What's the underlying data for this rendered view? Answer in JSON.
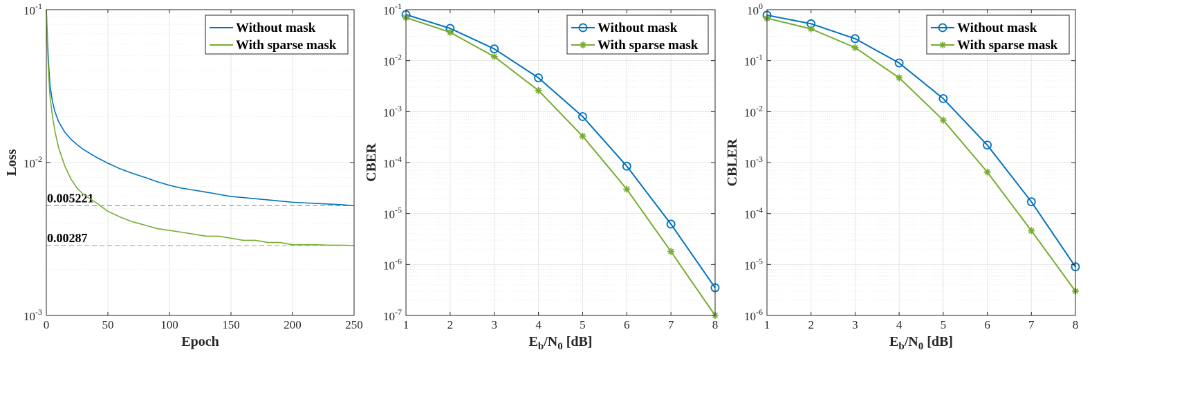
{
  "colors": {
    "blue": "#0072BD",
    "green": "#77AC30",
    "axis": "#262626",
    "grid": "#e6e6e6"
  },
  "chart_data": [
    {
      "type": "line",
      "xlabel": "Epoch",
      "ylabel": "Loss",
      "yscale": "log",
      "xlim": [
        0,
        250
      ],
      "ylim": [
        0.001,
        0.1
      ],
      "xticks": [
        0,
        50,
        100,
        150,
        200,
        250
      ],
      "yticks": [
        0.001,
        0.01,
        0.1
      ],
      "ytick_labels": [
        {
          "base": "10",
          "exp": "-3"
        },
        {
          "base": "10",
          "exp": "-2"
        },
        {
          "base": "10",
          "exp": "-1"
        }
      ],
      "grid": true,
      "legend": "top-right",
      "markers": false,
      "series": [
        {
          "name": "Without mask",
          "color": "#0072BD",
          "x": [
            0,
            1,
            2,
            3,
            5,
            7,
            10,
            15,
            20,
            25,
            30,
            40,
            50,
            60,
            70,
            80,
            90,
            100,
            110,
            120,
            130,
            140,
            150,
            160,
            170,
            180,
            190,
            200,
            210,
            220,
            230,
            240,
            250
          ],
          "y": [
            0.1,
            0.062,
            0.042,
            0.032,
            0.025,
            0.0215,
            0.0185,
            0.0158,
            0.0142,
            0.0131,
            0.0122,
            0.0109,
            0.0099,
            0.0091,
            0.0085,
            0.008,
            0.0075,
            0.0071,
            0.0068,
            0.0066,
            0.0064,
            0.0062,
            0.006,
            0.0059,
            0.0058,
            0.0057,
            0.0056,
            0.0055,
            0.00545,
            0.0054,
            0.00535,
            0.0053,
            0.00522
          ]
        },
        {
          "name": "With sparse mask",
          "color": "#77AC30",
          "x": [
            0,
            1,
            2,
            3,
            5,
            7,
            10,
            15,
            20,
            25,
            30,
            40,
            50,
            60,
            70,
            80,
            90,
            100,
            110,
            120,
            130,
            140,
            150,
            160,
            170,
            180,
            190,
            200,
            210,
            220,
            230,
            240,
            250
          ],
          "y": [
            0.1,
            0.055,
            0.036,
            0.027,
            0.02,
            0.016,
            0.0125,
            0.0095,
            0.0078,
            0.0068,
            0.0062,
            0.0055,
            0.0048,
            0.0044,
            0.0041,
            0.0039,
            0.0037,
            0.0036,
            0.0035,
            0.0034,
            0.0033,
            0.0033,
            0.0032,
            0.0031,
            0.0031,
            0.003,
            0.003,
            0.0029,
            0.0029,
            0.0029,
            0.00288,
            0.00288,
            0.00287
          ]
        }
      ],
      "reference_lines": [
        {
          "y": 0.005221,
          "label": "0.005221",
          "color": "#0072BD"
        },
        {
          "y": 0.00287,
          "label": "0.00287",
          "color": "#77AC30"
        }
      ]
    },
    {
      "type": "line",
      "xlabel": {
        "base": "E",
        "sub1": "b",
        "mid": "/N",
        "sub2": "0",
        "end": " [dB]"
      },
      "ylabel": "CBER",
      "yscale": "log",
      "xlim": [
        1,
        8
      ],
      "ylim": [
        1e-07,
        0.1
      ],
      "xticks": [
        1,
        2,
        3,
        4,
        5,
        6,
        7,
        8
      ],
      "yticks": [
        1e-07,
        1e-06,
        1e-05,
        0.0001,
        0.001,
        0.01,
        0.1
      ],
      "ytick_labels": [
        {
          "base": "10",
          "exp": "-7"
        },
        {
          "base": "10",
          "exp": "-6"
        },
        {
          "base": "10",
          "exp": "-5"
        },
        {
          "base": "10",
          "exp": "-4"
        },
        {
          "base": "10",
          "exp": "-3"
        },
        {
          "base": "10",
          "exp": "-2"
        },
        {
          "base": "10",
          "exp": "-1"
        }
      ],
      "grid": true,
      "legend": "top-right",
      "markers": true,
      "series": [
        {
          "name": "Without mask",
          "color": "#0072BD",
          "marker": "circle",
          "x": [
            1,
            2,
            3,
            4,
            5,
            6,
            7,
            8
          ],
          "y": [
            0.08,
            0.043,
            0.017,
            0.0046,
            0.0008,
            8.5e-05,
            6.2e-06,
            3.5e-07
          ]
        },
        {
          "name": "With sparse mask",
          "color": "#77AC30",
          "marker": "asterisk",
          "x": [
            1,
            2,
            3,
            4,
            5,
            6,
            7,
            8
          ],
          "y": [
            0.07,
            0.036,
            0.012,
            0.0026,
            0.00033,
            3e-05,
            1.8e-06,
            1e-07
          ]
        }
      ]
    },
    {
      "type": "line",
      "xlabel": {
        "base": "E",
        "sub1": "b",
        "mid": "/N",
        "sub2": "0",
        "end": " [dB]"
      },
      "ylabel": "CBLER",
      "yscale": "log",
      "xlim": [
        1,
        8
      ],
      "ylim": [
        1e-06,
        1
      ],
      "xticks": [
        1,
        2,
        3,
        4,
        5,
        6,
        7,
        8
      ],
      "yticks": [
        1e-06,
        1e-05,
        0.0001,
        0.001,
        0.01,
        0.1,
        1
      ],
      "ytick_labels": [
        {
          "base": "10",
          "exp": "-6"
        },
        {
          "base": "10",
          "exp": "-5"
        },
        {
          "base": "10",
          "exp": "-4"
        },
        {
          "base": "10",
          "exp": "-3"
        },
        {
          "base": "10",
          "exp": "-2"
        },
        {
          "base": "10",
          "exp": "-1"
        },
        {
          "base": "10",
          "exp": "0"
        }
      ],
      "grid": true,
      "legend": "top-right",
      "markers": true,
      "series": [
        {
          "name": "Without mask",
          "color": "#0072BD",
          "marker": "circle",
          "x": [
            1,
            2,
            3,
            4,
            5,
            6,
            7,
            8
          ],
          "y": [
            0.78,
            0.53,
            0.27,
            0.09,
            0.018,
            0.0022,
            0.00017,
            9e-06
          ]
        },
        {
          "name": "With sparse mask",
          "color": "#77AC30",
          "marker": "asterisk",
          "x": [
            1,
            2,
            3,
            4,
            5,
            6,
            7,
            8
          ],
          "y": [
            0.68,
            0.42,
            0.18,
            0.046,
            0.0068,
            0.00065,
            4.6e-05,
            3e-06
          ]
        }
      ]
    }
  ]
}
